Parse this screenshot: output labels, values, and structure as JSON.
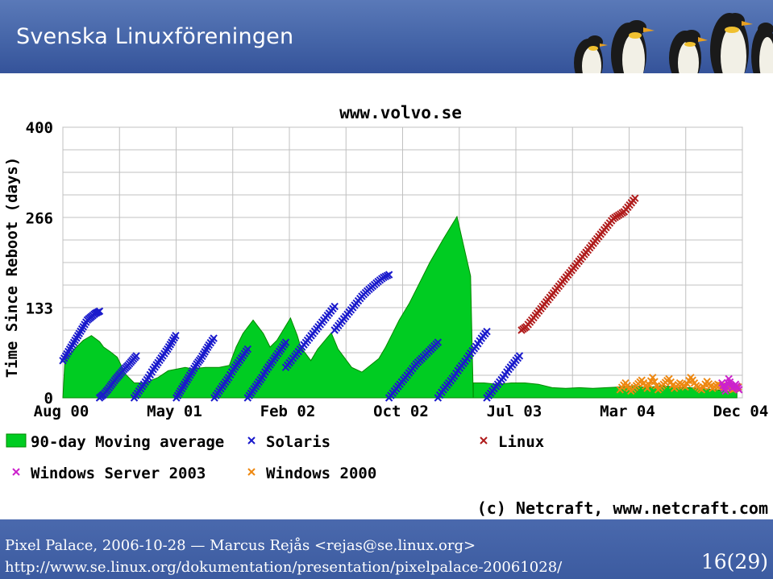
{
  "header": {
    "title": "Svenska Linuxföreningen"
  },
  "chart_data": {
    "type": "scatter",
    "title": "www.volvo.se",
    "ylabel": "Time Since Reboot (days)",
    "xlabel": "",
    "x_ticks": [
      "Aug 00",
      "May 01",
      "Feb 02",
      "Oct 02",
      "Jul 03",
      "Mar 04",
      "Dec 04"
    ],
    "y_ticks": [
      "0",
      "133",
      "266",
      "400"
    ],
    "ylim": [
      0,
      400
    ],
    "grid": true,
    "legend_position": "bottom",
    "copyright": "(c) Netcraft, www.netcraft.com",
    "colors": {
      "moving_average": "#00cc22",
      "solaris": "#1a1acc",
      "linux": "#b01c1c",
      "windows_server_2003": "#cc22cc",
      "windows_2000": "#ee8811"
    },
    "legend": [
      {
        "key": "moving_average",
        "label": "90-day Moving average",
        "marker": "box"
      },
      {
        "key": "solaris",
        "label": "Solaris",
        "marker": "x"
      },
      {
        "key": "linux",
        "label": "Linux",
        "marker": "x"
      },
      {
        "key": "windows_server_2003",
        "label": "Windows Server 2003",
        "marker": "x"
      },
      {
        "key": "windows_2000",
        "label": "Windows 2000",
        "marker": "x"
      }
    ],
    "moving_average": {
      "x": [
        0.0,
        0.3,
        1.0,
        2.0,
        3.0,
        4.2,
        5.4,
        6.0,
        7.0,
        8.0,
        9.2,
        10.5,
        12.3,
        13.0,
        14.0,
        15.5,
        16.5,
        18.0,
        19.0,
        21.0,
        22.0,
        23.0,
        24.5,
        25.5,
        26.5,
        28.0,
        29.5,
        30.5,
        31.5,
        33.5,
        34.5,
        35.0,
        36.5,
        37.5,
        39.5,
        40.5,
        42.5,
        44.0,
        45.5,
        46.5,
        47.5,
        48.5,
        49.5,
        51.0,
        52.5,
        54.0,
        56.0,
        58.0,
        60.0,
        60.4,
        62.0,
        66.0,
        72.0,
        77.0,
        82.0,
        90.0,
        98.0,
        98.8,
        99.2
      ],
      "y": [
        0,
        55,
        65,
        75,
        85,
        92,
        83,
        75,
        68,
        60,
        35,
        22,
        22,
        26,
        30,
        40,
        42,
        45,
        43,
        45,
        45,
        45,
        48,
        75,
        95,
        115,
        95,
        75,
        85,
        118,
        92,
        75,
        55,
        72,
        96,
        72,
        45,
        38,
        50,
        58,
        75,
        95,
        115,
        140,
        170,
        200,
        235,
        268,
        180,
        0,
        0,
        0,
        0,
        0,
        0,
        0,
        0,
        0,
        0
      ],
      "tail_segments": [
        {
          "x": [
            60.4,
            62.0,
            64.0,
            66.0,
            68.0,
            70.0,
            72.0,
            74.0,
            76.0,
            78.0,
            80.0,
            82.0,
            84.0,
            86.0,
            88.0,
            90.0,
            92.0,
            94.0,
            96.0,
            98.0,
            99.2
          ],
          "y": [
            22,
            22,
            20,
            22,
            22,
            20,
            15,
            14,
            15,
            14,
            15,
            16,
            18,
            15,
            18,
            16,
            15,
            14,
            12,
            10,
            10
          ]
        }
      ]
    },
    "series": [
      {
        "name": "Solaris",
        "key": "solaris",
        "segments": [
          {
            "x": [
              0.0,
              0.6,
              1.2,
              1.8,
              2.4,
              3.0,
              3.6,
              4.2,
              4.8,
              5.4
            ],
            "y": [
              55,
              65,
              75,
              85,
              95,
              105,
              115,
              120,
              125,
              128
            ]
          },
          {
            "x": [
              5.4,
              6.0,
              6.6,
              7.2,
              7.8,
              8.4,
              9.0,
              9.6,
              10.2,
              10.8
            ],
            "y": [
              0,
              5,
              12,
              20,
              28,
              35,
              42,
              48,
              55,
              62
            ]
          },
          {
            "x": [
              10.5,
              11.2,
              11.9,
              12.6,
              13.3,
              14.0,
              14.7,
              15.4,
              16.0,
              16.6
            ],
            "y": [
              0,
              10,
              20,
              30,
              42,
              52,
              62,
              72,
              82,
              92
            ]
          },
          {
            "x": [
              16.7,
              17.3,
              17.9,
              18.5,
              19.1,
              19.7,
              20.3,
              20.9,
              21.5,
              22.2
            ],
            "y": [
              0,
              10,
              20,
              30,
              40,
              50,
              58,
              68,
              78,
              88
            ]
          },
          {
            "x": [
              22.3,
              23.0,
              23.7,
              24.4,
              25.1,
              25.8,
              26.5,
              27.2
            ],
            "y": [
              0,
              10,
              20,
              30,
              42,
              52,
              62,
              72
            ]
          },
          {
            "x": [
              27.2,
              27.9,
              28.6,
              29.3,
              30.0,
              30.7,
              31.4,
              32.1,
              32.8
            ],
            "y": [
              0,
              10,
              20,
              30,
              42,
              52,
              62,
              72,
              82
            ]
          },
          {
            "x": [
              32.8,
              33.6,
              34.4,
              35.2,
              36.0,
              36.8,
              37.6,
              38.4,
              39.2,
              40.0
            ],
            "y": [
              45,
              55,
              65,
              75,
              85,
              95,
              105,
              115,
              125,
              135
            ]
          },
          {
            "x": [
              40.0,
              40.8,
              41.6,
              42.4,
              43.2,
              44.0,
              44.8,
              45.6,
              46.4,
              47.2,
              48.0
            ],
            "y": [
              100,
              110,
              120,
              130,
              140,
              150,
              158,
              165,
              172,
              178,
              182
            ]
          },
          {
            "x": [
              48.0,
              48.8,
              49.6,
              50.4,
              51.2,
              52.0,
              52.8,
              53.6,
              54.4,
              55.2
            ],
            "y": [
              0,
              10,
              20,
              30,
              40,
              50,
              58,
              66,
              74,
              82
            ]
          },
          {
            "x": [
              55.2,
              56.0,
              56.8,
              57.6,
              58.4,
              59.2,
              60.0,
              60.8,
              61.6,
              62.4
            ],
            "y": [
              0,
              12,
              22,
              32,
              44,
              54,
              66,
              76,
              88,
              98
            ]
          },
          {
            "x": [
              62.4,
              63.2,
              64.0,
              64.8,
              65.6,
              66.4,
              67.2
            ],
            "y": [
              0,
              10,
              20,
              30,
              42,
              52,
              62
            ]
          }
        ]
      },
      {
        "name": "Linux",
        "key": "linux",
        "segments": [
          {
            "x": [
              67.5,
              68.2,
              69.0,
              69.8,
              70.6,
              71.4,
              72.2,
              73.0,
              73.8,
              74.6,
              75.4,
              76.2,
              77.0
            ],
            "y": [
              100,
              105,
              115,
              125,
              135,
              145,
              155,
              165,
              175,
              185,
              195,
              205,
              215
            ]
          },
          {
            "x": [
              77.0,
              77.8,
              78.6,
              79.4,
              80.2,
              81.0,
              81.8,
              82.6,
              83.4,
              84.2
            ],
            "y": [
              215,
              225,
              235,
              245,
              255,
              265,
              270,
              275,
              285,
              295
            ]
          }
        ]
      },
      {
        "name": "Windows 2000",
        "key": "windows_2000",
        "segments": [
          {
            "x": [
              82.0,
              82.8,
              83.6,
              84.4,
              85.2,
              86.0,
              86.8,
              87.6,
              88.4,
              89.2,
              90.0,
              90.8,
              91.6,
              92.4,
              93.2,
              94.0,
              94.8,
              95.6,
              96.4,
              97.2,
              98.0,
              98.6,
              99.0,
              99.4
            ],
            "y": [
              12,
              22,
              10,
              18,
              26,
              14,
              30,
              12,
              20,
              28,
              14,
              22,
              16,
              30,
              18,
              12,
              24,
              14,
              20,
              16,
              18,
              12,
              14,
              16
            ]
          }
        ]
      },
      {
        "name": "Windows Server 2003",
        "key": "windows_server_2003",
        "segments": [
          {
            "x": [
              97.0,
              97.5,
              98.0,
              98.5,
              99.0,
              99.5
            ],
            "y": [
              22,
              10,
              28,
              14,
              20,
              12
            ]
          }
        ]
      }
    ]
  },
  "footer": {
    "line1": "Pixel Palace, 2006-10-28 — Marcus Rejås <rejas@se.linux.org>",
    "line2": "http://www.se.linux.org/dokumentation/presentation/pixelpalace-20061028/",
    "page": "16(29)"
  }
}
